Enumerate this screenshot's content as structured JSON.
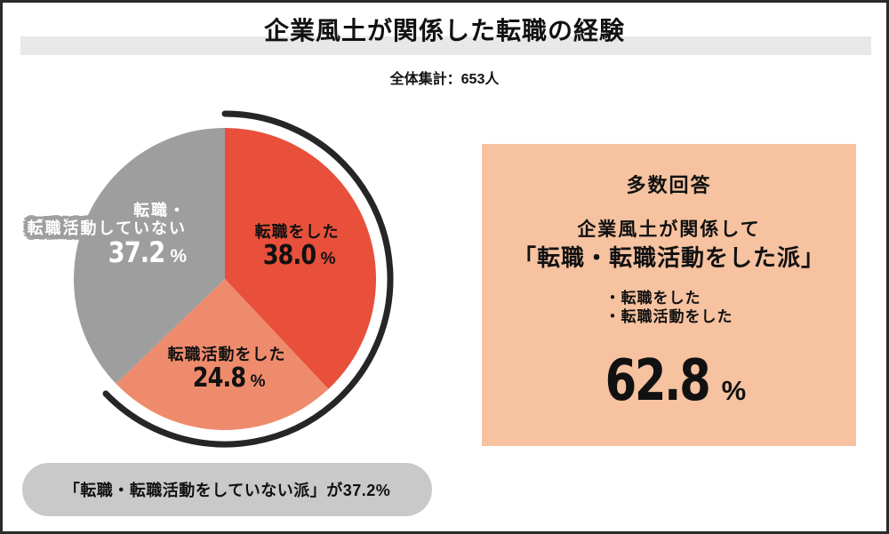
{
  "header": {
    "title": "企業風土が関係した転職の経験",
    "subtitle": "全体集計：653人"
  },
  "percent_sign": "%",
  "chart_data": {
    "type": "pie",
    "title": "企業風土が関係した転職の経験",
    "total_label": "全体集計：653人",
    "total_n": 653,
    "start_angle_deg": -90,
    "clockwise": true,
    "segments": [
      {
        "label": "転職をした",
        "value": 38.0,
        "display": "38.0",
        "color": "#e8503c",
        "text_color": "#111111"
      },
      {
        "label": "転職活動をした",
        "value": 24.8,
        "display": "24.8",
        "color": "#ef8b6d",
        "text_color": "#111111"
      },
      {
        "label": "転職・転職活動していない",
        "label_lines": [
          "転職・",
          "転職活動していない"
        ],
        "value": 37.2,
        "display": "37.2",
        "color": "#9e9e9e",
        "text_color": "#ffffff"
      }
    ],
    "highlight_arc": {
      "coverage_pct": 62.8,
      "color": "#262626",
      "meaning": "転職・転職活動をした派"
    }
  },
  "callout": {
    "bg_color": "#f6c2a0",
    "heading": "多数回答",
    "line1": "企業風土が関係して",
    "line2": "「転職・転職活動をした派」",
    "bullets": [
      "・転職をした",
      "・転職活動をした"
    ],
    "value_display": "62.8"
  },
  "footnote": {
    "text": "「転職・転職活動をしていない派」が37.2%"
  }
}
